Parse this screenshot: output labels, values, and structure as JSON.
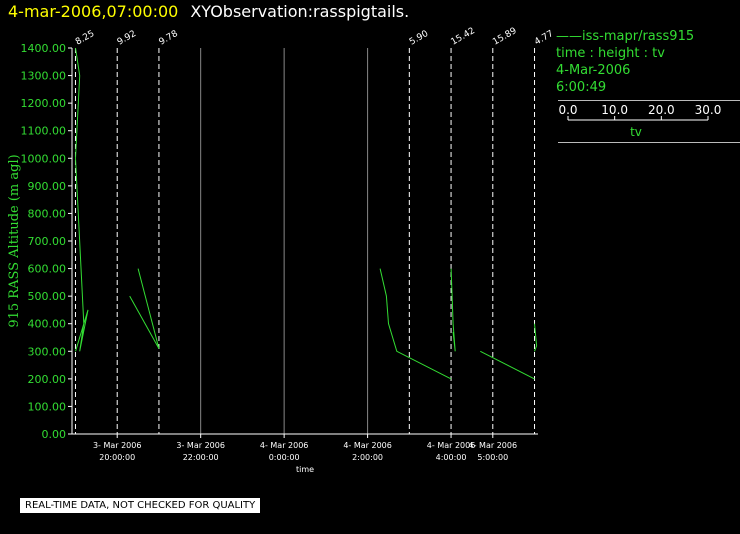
{
  "header": {
    "timestamp": "4-mar-2006,07:00:00",
    "dataset": "XYObservation:rasspigtails."
  },
  "legend": {
    "series": "iss-mapr/rass915",
    "variables": "time : height : tv",
    "date": "4-Mar-2006",
    "time": "6:00:49",
    "scale_ticks": [
      "0.0",
      "10.0",
      "20.0",
      "30.0"
    ],
    "scale_label": "tv"
  },
  "footer": "REAL-TIME DATA, NOT CHECKED FOR QUALITY",
  "colors": {
    "series": "#33dd33",
    "axis": "#ffffff",
    "title_time": "#ffff00"
  },
  "chart_data": {
    "type": "line",
    "ylabel": "915 RASS Altitude (m agl)",
    "xlabel": "time",
    "ylim": [
      0,
      1400
    ],
    "yticks": [
      "0.00",
      "100.00",
      "200.00",
      "300.00",
      "400.00",
      "500.00",
      "600.00",
      "700.00",
      "800.00",
      "900.00",
      "1000.00",
      "1100.00",
      "1200.00",
      "1300.00",
      "1400.00"
    ],
    "xlim": [
      "2006-03-03T18:55",
      "2006-03-04T06:05"
    ],
    "xticks": [
      {
        "t": "2006-03-03T20:00",
        "date": "3- Mar 2006",
        "time": "20:00:00"
      },
      {
        "t": "2006-03-03T22:00",
        "date": "3- Mar 2006",
        "time": "22:00:00"
      },
      {
        "t": "2006-03-04T00:00",
        "date": "4- Mar 2006",
        "time": "0:00:00"
      },
      {
        "t": "2006-03-04T02:00",
        "date": "4- Mar 2006",
        "time": "2:00:00"
      },
      {
        "t": "2006-03-04T04:00",
        "date": "4- Mar 2006",
        "time": "4:00:00"
      },
      {
        "t": "2006-03-04T05:00",
        "date": "4- Mar 2006",
        "time": "5:00:00"
      }
    ],
    "profiles": [
      {
        "t": "2006-03-03T19:00",
        "label": "8.25",
        "dashed": true
      },
      {
        "t": "2006-03-03T20:00",
        "label": "9.92",
        "dashed": true
      },
      {
        "t": "2006-03-03T21:00",
        "label": "9.78",
        "dashed": true
      },
      {
        "t": "2006-03-04T03:00",
        "label": "5.90",
        "dashed": true
      },
      {
        "t": "2006-03-04T04:00",
        "label": "15.42",
        "dashed": true
      },
      {
        "t": "2006-03-04T05:00",
        "label": "15.89",
        "dashed": true
      },
      {
        "t": "2006-03-04T06:00",
        "label": "4.77",
        "dashed": true
      }
    ],
    "hour_lines": [
      "2006-03-03T22:00",
      "2006-03-04T00:00",
      "2006-03-04T02:00"
    ],
    "series": [
      {
        "points": [
          [
            0.0,
            1400
          ],
          [
            0.1,
            1300
          ],
          [
            0.0,
            1000
          ],
          [
            0.2,
            400
          ],
          [
            0.1,
            300
          ],
          [
            0.3,
            450
          ],
          [
            0.0,
            300
          ]
        ]
      },
      {
        "points": [
          [
            0.3,
            500
          ],
          [
            1.0,
            310
          ]
        ]
      },
      {
        "points": [
          [
            -0.5,
            600
          ],
          [
            0.0,
            310
          ]
        ]
      },
      {
        "points": [
          [
            -0.7,
            600
          ],
          [
            -0.55,
            500
          ],
          [
            -0.5,
            400
          ],
          [
            -0.3,
            300
          ],
          [
            1.0,
            200
          ]
        ]
      },
      {
        "points": [
          [
            0.0,
            600
          ],
          [
            0.05,
            400
          ],
          [
            0.1,
            300
          ],
          [
            0.05,
            370
          ]
        ]
      },
      {
        "points": [
          [
            -0.3,
            300
          ],
          [
            1.0,
            200
          ]
        ]
      },
      {
        "points": [
          [
            0.0,
            400
          ],
          [
            0.05,
            320
          ],
          [
            0.0,
            300
          ]
        ]
      }
    ]
  }
}
